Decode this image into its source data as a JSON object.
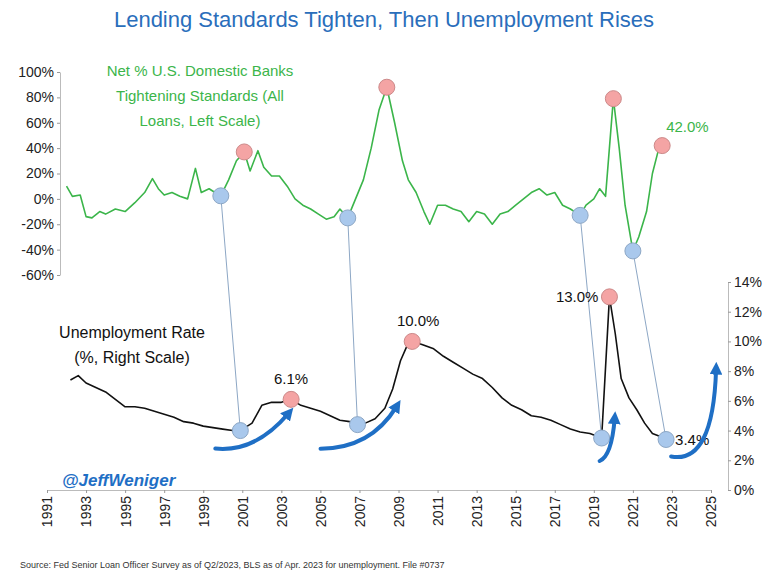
{
  "chart_data": {
    "type": "line",
    "title": "Lending Standards Tighten, Then Unemployment Rises",
    "credit": "@JeffWeniger",
    "source": "Source: Fed Senior Loan Officer Survey as of Q2/2023, BLS as of Apr. 2023 for unemployment. File #0737",
    "xlim": [
      1991,
      2025
    ],
    "xticks": [
      1991,
      1993,
      1995,
      1997,
      1999,
      2001,
      2003,
      2005,
      2007,
      2009,
      2011,
      2013,
      2015,
      2017,
      2019,
      2021,
      2023,
      2025
    ],
    "ylim": [
      -60,
      100
    ],
    "yticks": [
      {
        "value": -60,
        "label": "-60%"
      },
      {
        "value": -40,
        "label": "-40%"
      },
      {
        "value": -20,
        "label": "-20%"
      },
      {
        "value": 0,
        "label": "0%"
      },
      {
        "value": 20,
        "label": "20%"
      },
      {
        "value": 40,
        "label": "40%"
      },
      {
        "value": 60,
        "label": "60%"
      },
      {
        "value": 80,
        "label": "80%"
      },
      {
        "value": 100,
        "label": "100%"
      }
    ],
    "y2lim": [
      0,
      14
    ],
    "y2ticks": [
      {
        "value": 0,
        "label": "0%"
      },
      {
        "value": 2,
        "label": "2%"
      },
      {
        "value": 4,
        "label": "4%"
      },
      {
        "value": 6,
        "label": "6%"
      },
      {
        "value": 8,
        "label": "8%"
      },
      {
        "value": 10,
        "label": "10%"
      },
      {
        "value": 12,
        "label": "12%"
      },
      {
        "value": 14,
        "label": "14%"
      }
    ],
    "grid": false,
    "series": [
      {
        "name": "Net % U.S. Domestic Banks Tightening Standards (All Loans, Left Scale)",
        "color": "#3bb54a",
        "axis": "y",
        "x": [
          1992.0,
          1992.3,
          1992.7,
          1993.0,
          1993.3,
          1993.7,
          1994.0,
          1994.5,
          1995.0,
          1995.5,
          1996.0,
          1996.4,
          1996.7,
          1997.0,
          1997.4,
          1997.8,
          1998.2,
          1998.6,
          1998.9,
          1999.3,
          1999.6,
          1999.9,
          2000.3,
          2000.7,
          2001.1,
          2001.4,
          2001.8,
          2002.1,
          2002.5,
          2002.9,
          2003.3,
          2003.7,
          2004.1,
          2004.5,
          2004.9,
          2005.3,
          2005.7,
          2006.0,
          2006.4,
          2006.8,
          2007.2,
          2007.6,
          2008.0,
          2008.4,
          2008.8,
          2009.2,
          2009.5,
          2009.9,
          2010.3,
          2010.6,
          2011.0,
          2011.4,
          2011.8,
          2012.2,
          2012.6,
          2013.0,
          2013.4,
          2013.8,
          2014.2,
          2014.6,
          2015.0,
          2015.4,
          2015.8,
          2016.2,
          2016.6,
          2017.0,
          2017.4,
          2017.8,
          2018.3,
          2018.6,
          2019.0,
          2019.3,
          2019.6,
          2020.0,
          2020.3,
          2020.6,
          2021.0,
          2021.3,
          2021.7,
          2022.0,
          2022.3,
          2022.5
        ],
        "values": [
          10,
          2,
          3,
          -14,
          -15,
          -10,
          -12,
          -8,
          -10,
          -3,
          5,
          16,
          8,
          3,
          5,
          2,
          0,
          24,
          5,
          8,
          5,
          2.4,
          15,
          30,
          37,
          22,
          38,
          25,
          18,
          18,
          10,
          0,
          -5,
          -8,
          -12,
          -16,
          -14,
          -8,
          -15,
          0,
          15,
          40,
          70,
          88,
          60,
          30,
          15,
          5,
          -10,
          -20,
          -5,
          -5,
          -8,
          -10,
          -18,
          -10,
          -12,
          -20,
          -12,
          -10,
          -5,
          0,
          5,
          8,
          3,
          5,
          -5,
          -8,
          -13,
          -5,
          0,
          8,
          2,
          79,
          40,
          -5,
          -41,
          -30,
          -10,
          20,
          38,
          42
        ]
      },
      {
        "name": "Unemployment Rate (%, Right Scale)",
        "color": "#111111",
        "axis": "y2",
        "x": [
          1992.2,
          1992.6,
          1993.0,
          1993.5,
          1994.0,
          1994.5,
          1995.0,
          1995.5,
          1996.0,
          1996.5,
          1997.0,
          1997.5,
          1998.0,
          1998.5,
          1999.0,
          1999.5,
          2000.0,
          2000.5,
          2000.9,
          2001.5,
          2002.0,
          2002.5,
          2003.0,
          2003.5,
          2004.0,
          2004.5,
          2005.0,
          2005.5,
          2006.0,
          2006.5,
          2006.9,
          2007.3,
          2007.8,
          2008.3,
          2008.7,
          2009.1,
          2009.4,
          2009.7,
          2010.2,
          2010.8,
          2011.3,
          2011.8,
          2012.3,
          2012.8,
          2013.3,
          2013.8,
          2014.3,
          2014.8,
          2015.3,
          2015.8,
          2016.3,
          2016.8,
          2017.3,
          2017.8,
          2018.3,
          2018.8,
          2019.4,
          2019.8,
          2020.1,
          2020.4,
          2020.8,
          2021.2,
          2021.6,
          2022.0,
          2022.4,
          2022.7
        ],
        "values": [
          7.4,
          7.7,
          7.2,
          6.9,
          6.6,
          6.1,
          5.6,
          5.6,
          5.5,
          5.3,
          5.1,
          4.9,
          4.6,
          4.5,
          4.3,
          4.2,
          4.1,
          4.0,
          4.0,
          4.5,
          5.7,
          5.9,
          5.9,
          6.1,
          5.7,
          5.5,
          5.3,
          5.0,
          4.7,
          4.6,
          4.4,
          4.5,
          4.8,
          5.5,
          6.8,
          8.7,
          9.6,
          10.0,
          9.8,
          9.5,
          9.0,
          8.6,
          8.2,
          7.8,
          7.5,
          6.9,
          6.2,
          5.7,
          5.4,
          5.0,
          4.9,
          4.7,
          4.4,
          4.1,
          3.9,
          3.8,
          3.5,
          13.0,
          10.5,
          7.5,
          6.2,
          5.4,
          4.5,
          3.8,
          3.6,
          3.4
        ]
      }
    ],
    "annotations": [
      {
        "x": 2001.1,
        "y": 37,
        "axis": "y",
        "color": "#f4a4a4"
      },
      {
        "x": 2008.4,
        "y": 88,
        "axis": "y",
        "color": "#f4a4a4"
      },
      {
        "x": 2020.0,
        "y": 79,
        "axis": "y",
        "color": "#f4a4a4"
      },
      {
        "x": 2022.5,
        "y": 42,
        "axis": "y",
        "color": "#f4a4a4",
        "label": "42.0%"
      },
      {
        "x": 2003.5,
        "y": 6.1,
        "axis": "y2",
        "color": "#f4a4a4",
        "label": "6.1%"
      },
      {
        "x": 2009.7,
        "y": 10.0,
        "axis": "y2",
        "color": "#f4a4a4",
        "label": "10.0%"
      },
      {
        "x": 2019.8,
        "y": 13.0,
        "axis": "y2",
        "color": "#f4a4a4",
        "label": "13.0%"
      }
    ],
    "connectors": [
      {
        "x": [
          1999.9,
          2000.9
        ],
        "y": [
          2.4,
          4.0
        ],
        "axis": [
          "y",
          "y2"
        ],
        "color": "#a9c8ec"
      },
      {
        "x": [
          2006.4,
          2006.9
        ],
        "y": [
          -15,
          4.4
        ],
        "axis": [
          "y",
          "y2"
        ],
        "color": "#a9c8ec"
      },
      {
        "x": [
          2018.3,
          2019.4
        ],
        "y": [
          -13,
          3.5
        ],
        "axis": [
          "y",
          "y2"
        ],
        "color": "#a9c8ec"
      },
      {
        "x": [
          2021.0,
          2022.7
        ],
        "y": [
          -41,
          3.4
        ],
        "axis": [
          "y",
          "y2"
        ],
        "color": "#a9c8ec",
        "label": "3.4%"
      }
    ]
  }
}
